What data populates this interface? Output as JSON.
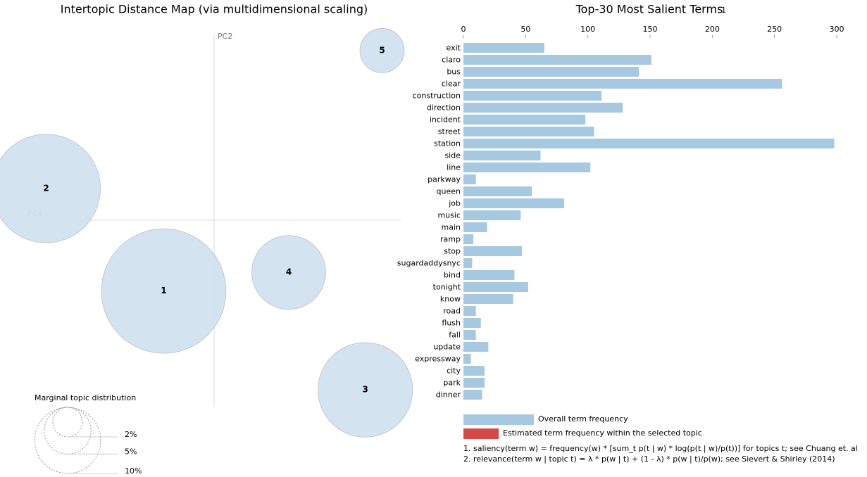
{
  "chart_data": [
    {
      "type": "bubble",
      "title": "Intertopic Distance Map (via multidimensional scaling)",
      "x_label": "PC1",
      "y_label": "PC2",
      "point_labels": [
        "1",
        "2",
        "3",
        "4",
        "5"
      ],
      "x": [
        -0.27,
        -0.9,
        0.81,
        0.4,
        0.9
      ],
      "values": [
        -0.38,
        0.17,
        -0.91,
        -0.28,
        0.91
      ],
      "sizes": [
        35.5,
        27,
        20.5,
        12.5,
        4.5
      ],
      "color": "#d1e2ee",
      "xlim": [
        -1,
        1
      ],
      "ylim": [
        -1,
        1
      ],
      "size_legend": {
        "title": "Marginal topic distribution",
        "ticks": [
          {
            "value": 2,
            "label": "2%"
          },
          {
            "value": 5,
            "label": "5%"
          },
          {
            "value": 10,
            "label": "10%"
          }
        ]
      }
    },
    {
      "type": "hbar",
      "title": "Top-30 Most Salient Terms",
      "title_note": "1",
      "categories": [
        "exit",
        "claro",
        "bus",
        "clear",
        "construction",
        "direction",
        "incident",
        "street",
        "station",
        "side",
        "line",
        "parkway",
        "queen",
        "job",
        "music",
        "main",
        "ramp",
        "stop",
        "sugardaddysnyc",
        "bind",
        "tonight",
        "know",
        "road",
        "flush",
        "fall",
        "update",
        "expressway",
        "city",
        "park",
        "dinner"
      ],
      "series": [
        {
          "name": "Overall term frequency",
          "color": "#a6c8e0",
          "values": [
            65,
            151,
            141,
            256,
            111,
            128,
            98,
            105,
            298,
            62,
            102,
            10,
            55,
            81,
            46,
            19,
            8,
            47,
            7,
            41,
            52,
            40,
            10,
            14,
            10,
            20,
            6,
            17,
            17,
            15
          ]
        }
      ],
      "legend_entries": [
        {
          "name": "Estimated term frequency within the selected topic",
          "color": "#d6494b"
        }
      ],
      "xlim": [
        0,
        300
      ],
      "xticks": [
        0,
        50,
        100,
        150,
        200,
        250,
        300
      ],
      "notes": [
        "1. saliency(term w) = frequency(w) * [sum_t p(t | w) * log(p(t | w)/p(t))] for topics t; see Chuang et. al",
        "2. relevance(term w | topic t) = λ * p(w | t) + (1 - λ) * p(w | t)/p(w); see Sievert & Shirley (2014)"
      ]
    }
  ]
}
